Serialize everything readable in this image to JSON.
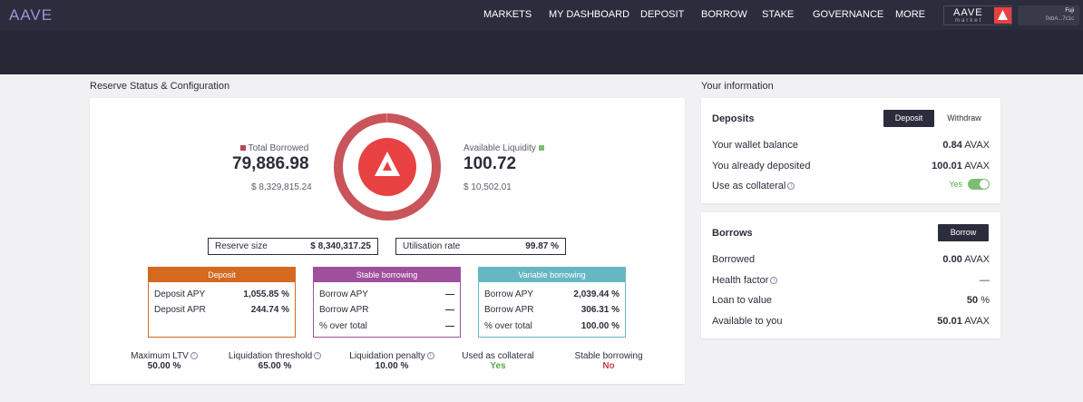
{
  "header": {
    "logo": "AAVE",
    "nav": [
      "MARKETS",
      "MY DASHBOARD",
      "DEPOSIT",
      "BORROW",
      "STAKE",
      "GOVERNANCE",
      "MORE"
    ],
    "market_logo": "AAVE",
    "market_sub": "market",
    "wallet_network": "Fuji",
    "wallet_address": "0xbA...7c1c"
  },
  "reserve": {
    "title": "Reserve Status & Configuration",
    "total_borrowed_label": "Total Borrowed",
    "total_borrowed": "79,886.98",
    "total_borrowed_usd": "$ 8,329,815.24",
    "available_liquidity_label": "Available Liquidity",
    "available_liquidity": "100.72",
    "available_liquidity_usd": "$ 10,502.01",
    "reserve_size_label": "Reserve size",
    "reserve_size": "$ 8,340,317.25",
    "utilisation_label": "Utilisation rate",
    "utilisation": "99.87 %",
    "colors": {
      "borrowed": "#b6484f",
      "liquidity": "#7bbd74",
      "deposit": "#d4691f",
      "stable": "#9f4f9c",
      "variable": "#67b7c3"
    },
    "deposit_card": {
      "title": "Deposit",
      "rows": [
        {
          "label": "Deposit APY",
          "value": "1,055.85 %"
        },
        {
          "label": "Deposit APR",
          "value": "244.74 %"
        }
      ]
    },
    "stable_card": {
      "title": "Stable borrowing",
      "rows": [
        {
          "label": "Borrow APY",
          "value": "—"
        },
        {
          "label": "Borrow APR",
          "value": "—"
        },
        {
          "label": "% over total",
          "value": "—"
        }
      ]
    },
    "variable_card": {
      "title": "Variable borrowing",
      "rows": [
        {
          "label": "Borrow APY",
          "value": "2,039.44 %"
        },
        {
          "label": "Borrow APR",
          "value": "306.31 %"
        },
        {
          "label": "% over total",
          "value": "100.00 %"
        }
      ]
    },
    "stats": [
      {
        "label": "Maximum LTV",
        "value": "50.00 %",
        "info": true
      },
      {
        "label": "Liquidation threshold",
        "value": "65.00 %",
        "info": true
      },
      {
        "label": "Liquidation penalty",
        "value": "10.00 %",
        "info": true
      },
      {
        "label": "Used as collateral",
        "value": "Yes",
        "info": false
      },
      {
        "label": "Stable borrowing",
        "value": "No",
        "info": false
      }
    ]
  },
  "info": {
    "title": "Your information",
    "deposits": {
      "title": "Deposits",
      "deposit_button": "Deposit",
      "withdraw_button": "Withdraw",
      "wallet_balance_label": "Your wallet balance",
      "wallet_balance": "0.84",
      "already_deposited_label": "You already deposited",
      "already_deposited": "100.01",
      "collateral_label": "Use as collateral",
      "collateral_value": "Yes",
      "unit": "AVAX"
    },
    "borrows": {
      "title": "Borrows",
      "borrow_button": "Borrow",
      "borrowed_label": "Borrowed",
      "borrowed": "0.00",
      "health_label": "Health factor",
      "health": "—",
      "ltv_label": "Loan to value",
      "ltv": "50",
      "ltv_unit": "%",
      "available_label": "Available to you",
      "available": "50.01",
      "unit": "AVAX"
    }
  }
}
